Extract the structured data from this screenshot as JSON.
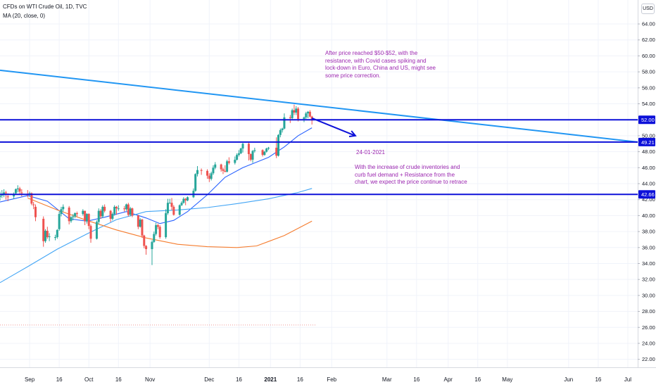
{
  "header": {
    "title": "CFDs on WTI Crude Oil, 1D, TVC",
    "ma_label": "MA (20, close, 0)",
    "currency": "USD"
  },
  "colors": {
    "candle_up": "#26a69a",
    "candle_down": "#ef5350",
    "ma20": "#2962ff",
    "ma50": "#42a5f5",
    "ma200": "#f57c2e",
    "level_line": "#0d11d9",
    "trend_line": "#2196f3",
    "annotation": "#9c27b0"
  },
  "annotations": {
    "note1": "After price reached $50-$52, with the resistance, with Covid cases spiking and lock-down in Euro, China and US, might see some price correction.",
    "note_date": "24-01-2021",
    "note2": "With the increase of crude inventories and curb fuel demand + Resistance from the chart, we expect the price continue to retrace"
  },
  "chart_data": {
    "type": "candlestick",
    "title": "CFDs on WTI Crude Oil, 1D, TVC",
    "y_axis": {
      "range": [
        21.0,
        67.0
      ],
      "ticks": [
        "22.00",
        "24.00",
        "26.00",
        "28.00",
        "30.00",
        "32.00",
        "34.00",
        "36.00",
        "38.00",
        "40.00",
        "42.00",
        "44.00",
        "46.00",
        "48.00",
        "50.00",
        "52.00",
        "54.00",
        "56.00",
        "58.00",
        "60.00",
        "62.00",
        "64.00"
      ]
    },
    "x_axis": {
      "range": [
        "2020-08-17",
        "2021-07-06"
      ],
      "ticks": [
        {
          "label": "Sep",
          "date": "2020-09-01"
        },
        {
          "label": "16",
          "date": "2020-09-16"
        },
        {
          "label": "Oct",
          "date": "2020-10-01"
        },
        {
          "label": "16",
          "date": "2020-10-16"
        },
        {
          "label": "Nov",
          "date": "2020-11-01"
        },
        {
          "label": "Dec",
          "date": "2020-12-01"
        },
        {
          "label": "16",
          "date": "2020-12-16"
        },
        {
          "label": "2021",
          "date": "2021-01-01"
        },
        {
          "label": "16",
          "date": "2021-01-16"
        },
        {
          "label": "Feb",
          "date": "2021-02-01"
        },
        {
          "label": "Mar",
          "date": "2021-03-01"
        },
        {
          "label": "16",
          "date": "2021-03-16"
        },
        {
          "label": "Apr",
          "date": "2021-04-01"
        },
        {
          "label": "16",
          "date": "2021-04-16"
        },
        {
          "label": "May",
          "date": "2021-05-01"
        },
        {
          "label": "Jun",
          "date": "2021-06-01"
        },
        {
          "label": "16",
          "date": "2021-06-16"
        },
        {
          "label": "Jul",
          "date": "2021-07-01"
        }
      ]
    },
    "horizontal_levels": [
      {
        "price": 52.0,
        "label": "52.00"
      },
      {
        "price": 49.21,
        "label": "49.21"
      },
      {
        "price": 42.66,
        "label": "42.66"
      }
    ],
    "trend_line": {
      "from": {
        "date": "2020-08-17",
        "price": 58.2
      },
      "to": {
        "date": "2021-07-06",
        "price": 49.21
      }
    },
    "projection_arrow": {
      "from": {
        "date": "2021-01-22",
        "price": 52.2
      },
      "to": {
        "date": "2021-02-13",
        "price": 50.0
      }
    },
    "dotted_level": {
      "price": 26.3,
      "to_date": "2021-01-24"
    },
    "candles": [
      [
        "2020-08-17",
        42.3,
        43.0,
        41.9,
        42.5
      ],
      [
        "2020-08-18",
        42.6,
        43.2,
        42.2,
        42.6
      ],
      [
        "2020-08-19",
        42.7,
        43.3,
        42.3,
        42.9
      ],
      [
        "2020-08-20",
        42.9,
        43.1,
        42.0,
        42.8
      ],
      [
        "2020-08-21",
        42.4,
        42.8,
        41.8,
        42.3
      ],
      [
        "2020-08-24",
        42.4,
        42.9,
        42.1,
        42.6
      ],
      [
        "2020-08-25",
        42.8,
        43.4,
        42.6,
        43.3
      ],
      [
        "2020-08-26",
        43.3,
        43.8,
        42.9,
        43.4
      ],
      [
        "2020-08-27",
        43.4,
        43.6,
        42.7,
        43.0
      ],
      [
        "2020-08-28",
        42.9,
        43.3,
        42.4,
        42.8
      ],
      [
        "2020-08-31",
        42.7,
        43.2,
        42.3,
        42.6
      ],
      [
        "2020-09-01",
        42.7,
        43.0,
        42.4,
        42.8
      ],
      [
        "2020-09-02",
        42.8,
        42.9,
        41.3,
        41.5
      ],
      [
        "2020-09-03",
        41.4,
        41.7,
        40.8,
        41.3
      ],
      [
        "2020-09-04",
        41.1,
        41.4,
        39.3,
        39.8
      ],
      [
        "2020-09-08",
        39.6,
        39.9,
        36.1,
        36.8
      ],
      [
        "2020-09-09",
        36.8,
        38.3,
        36.6,
        38.1
      ],
      [
        "2020-09-10",
        38.1,
        38.6,
        37.1,
        37.3
      ],
      [
        "2020-09-11",
        37.3,
        37.8,
        36.8,
        37.4
      ],
      [
        "2020-09-14",
        37.3,
        37.6,
        36.9,
        37.3
      ],
      [
        "2020-09-15",
        37.3,
        38.3,
        37.1,
        38.2
      ],
      [
        "2020-09-16",
        38.3,
        40.5,
        38.1,
        40.2
      ],
      [
        "2020-09-17",
        40.2,
        41.1,
        39.9,
        40.8
      ],
      [
        "2020-09-18",
        40.8,
        41.4,
        40.5,
        41.1
      ],
      [
        "2020-09-21",
        41.0,
        41.2,
        38.9,
        39.3
      ],
      [
        "2020-09-22",
        39.3,
        39.9,
        39.1,
        39.8
      ],
      [
        "2020-09-23",
        39.8,
        40.2,
        39.4,
        39.9
      ],
      [
        "2020-09-24",
        39.9,
        40.4,
        39.7,
        40.3
      ],
      [
        "2020-09-25",
        40.3,
        40.5,
        39.9,
        40.2
      ],
      [
        "2020-09-28",
        40.2,
        40.8,
        40.0,
        40.6
      ],
      [
        "2020-09-29",
        40.6,
        40.6,
        38.8,
        39.3
      ],
      [
        "2020-09-30",
        39.3,
        40.3,
        39.0,
        40.2
      ],
      [
        "2020-10-01",
        40.2,
        40.3,
        38.3,
        38.7
      ],
      [
        "2020-10-02",
        38.7,
        38.9,
        36.6,
        37.1
      ],
      [
        "2020-10-05",
        37.1,
        39.4,
        37.0,
        39.2
      ],
      [
        "2020-10-06",
        39.2,
        40.9,
        38.9,
        40.6
      ],
      [
        "2020-10-07",
        40.6,
        40.8,
        39.6,
        39.9
      ],
      [
        "2020-10-08",
        39.9,
        41.3,
        39.7,
        41.1
      ],
      [
        "2020-10-09",
        41.1,
        41.4,
        40.4,
        40.6
      ],
      [
        "2020-10-12",
        40.6,
        40.7,
        39.2,
        39.6
      ],
      [
        "2020-10-13",
        39.6,
        40.4,
        39.4,
        40.2
      ],
      [
        "2020-10-14",
        40.2,
        41.3,
        40.0,
        41.1
      ],
      [
        "2020-10-15",
        41.1,
        41.2,
        40.1,
        40.9
      ],
      [
        "2020-10-16",
        40.9,
        41.3,
        40.6,
        40.9
      ],
      [
        "2020-10-19",
        40.9,
        41.2,
        40.5,
        40.8
      ],
      [
        "2020-10-20",
        40.8,
        41.5,
        40.6,
        41.4
      ],
      [
        "2020-10-21",
        41.4,
        41.6,
        39.9,
        40.1
      ],
      [
        "2020-10-22",
        40.1,
        41.1,
        39.9,
        40.9
      ],
      [
        "2020-10-23",
        40.9,
        41.0,
        39.8,
        40.0
      ],
      [
        "2020-10-26",
        40.0,
        40.1,
        38.3,
        38.6
      ],
      [
        "2020-10-27",
        38.6,
        39.7,
        38.5,
        39.5
      ],
      [
        "2020-10-28",
        39.5,
        39.6,
        37.2,
        37.5
      ],
      [
        "2020-10-29",
        37.5,
        37.6,
        35.9,
        36.2
      ],
      [
        "2020-10-30",
        36.2,
        36.3,
        35.1,
        35.8
      ],
      [
        "2020-11-02",
        35.8,
        36.9,
        33.8,
        36.7
      ],
      [
        "2020-11-03",
        36.7,
        38.0,
        36.6,
        37.7
      ],
      [
        "2020-11-04",
        37.7,
        39.1,
        37.5,
        38.8
      ],
      [
        "2020-11-05",
        38.8,
        39.0,
        38.3,
        38.6
      ],
      [
        "2020-11-06",
        38.6,
        38.8,
        37.1,
        37.3
      ],
      [
        "2020-11-09",
        37.3,
        40.8,
        37.1,
        40.3
      ],
      [
        "2020-11-10",
        40.3,
        42.1,
        40.1,
        41.6
      ],
      [
        "2020-11-11",
        41.6,
        42.1,
        41.5,
        41.6
      ],
      [
        "2020-11-12",
        41.6,
        42.2,
        40.7,
        41.1
      ],
      [
        "2020-11-13",
        41.1,
        41.3,
        40.0,
        40.1
      ],
      [
        "2020-11-16",
        40.1,
        41.4,
        40.0,
        41.3
      ],
      [
        "2020-11-17",
        41.3,
        41.8,
        41.2,
        41.6
      ],
      [
        "2020-11-18",
        41.6,
        42.3,
        41.5,
        42.1
      ],
      [
        "2020-11-19",
        42.1,
        42.2,
        41.3,
        41.9
      ],
      [
        "2020-11-20",
        41.9,
        42.4,
        41.8,
        42.3
      ],
      [
        "2020-11-23",
        42.3,
        43.4,
        42.2,
        43.1
      ],
      [
        "2020-11-24",
        43.1,
        45.3,
        43.0,
        45.2
      ],
      [
        "2020-11-25",
        45.2,
        46.2,
        44.9,
        45.7
      ],
      [
        "2020-11-27",
        45.7,
        45.9,
        45.1,
        45.6
      ],
      [
        "2020-11-30",
        45.6,
        45.8,
        44.6,
        45.0
      ],
      [
        "2020-12-01",
        45.0,
        45.3,
        44.2,
        44.6
      ],
      [
        "2020-12-02",
        44.6,
        45.5,
        44.4,
        45.3
      ],
      [
        "2020-12-03",
        45.3,
        46.3,
        45.1,
        46.0
      ],
      [
        "2020-12-04",
        46.0,
        46.7,
        45.8,
        46.4
      ],
      [
        "2020-12-07",
        46.4,
        46.5,
        45.5,
        45.8
      ],
      [
        "2020-12-08",
        45.8,
        46.0,
        45.2,
        45.6
      ],
      [
        "2020-12-09",
        45.6,
        46.3,
        45.4,
        45.5
      ],
      [
        "2020-12-10",
        45.5,
        47.0,
        45.4,
        46.8
      ],
      [
        "2020-12-11",
        46.8,
        47.3,
        46.4,
        46.6
      ],
      [
        "2020-12-14",
        46.6,
        47.4,
        46.4,
        47.0
      ],
      [
        "2020-12-15",
        47.0,
        47.8,
        46.9,
        47.6
      ],
      [
        "2020-12-16",
        47.6,
        48.2,
        47.4,
        47.8
      ],
      [
        "2020-12-17",
        47.8,
        48.5,
        47.7,
        48.4
      ],
      [
        "2020-12-18",
        48.4,
        49.1,
        47.9,
        49.0
      ],
      [
        "2020-12-21",
        49.0,
        49.2,
        46.9,
        47.7
      ],
      [
        "2020-12-22",
        47.7,
        47.8,
        46.8,
        47.0
      ],
      [
        "2020-12-23",
        47.0,
        48.2,
        46.6,
        48.1
      ],
      [
        "2020-12-24",
        48.1,
        48.5,
        47.9,
        48.2
      ],
      [
        "2020-12-28",
        48.2,
        48.3,
        47.4,
        47.6
      ],
      [
        "2020-12-29",
        47.6,
        48.1,
        47.5,
        48.0
      ],
      [
        "2020-12-30",
        48.0,
        48.5,
        47.9,
        48.4
      ],
      [
        "2020-12-31",
        48.4,
        48.6,
        48.2,
        48.5
      ],
      [
        "2021-01-04",
        48.5,
        49.8,
        47.2,
        47.5
      ],
      [
        "2021-01-05",
        47.5,
        50.2,
        47.4,
        50.1
      ],
      [
        "2021-01-06",
        50.1,
        50.9,
        49.8,
        50.7
      ],
      [
        "2021-01-07",
        50.7,
        51.0,
        50.4,
        50.9
      ],
      [
        "2021-01-08",
        50.9,
        52.8,
        50.8,
        52.3
      ],
      [
        "2021-01-11",
        52.3,
        52.6,
        51.6,
        52.2
      ],
      [
        "2021-01-12",
        52.2,
        53.4,
        52.0,
        53.2
      ],
      [
        "2021-01-13",
        53.2,
        53.9,
        52.6,
        52.9
      ],
      [
        "2021-01-14",
        52.9,
        53.7,
        52.6,
        53.4
      ],
      [
        "2021-01-15",
        53.4,
        53.6,
        51.8,
        52.1
      ],
      [
        "2021-01-18",
        52.1,
        52.4,
        51.7,
        52.3
      ],
      [
        "2021-01-19",
        52.3,
        53.0,
        52.1,
        52.8
      ],
      [
        "2021-01-20",
        52.8,
        53.1,
        52.2,
        53.0
      ],
      [
        "2021-01-21",
        53.0,
        53.2,
        52.3,
        52.4
      ],
      [
        "2021-01-22",
        52.4,
        52.5,
        51.4,
        51.9
      ]
    ],
    "moving_averages": [
      {
        "label": "MA 20",
        "color_key": "ma20",
        "points": [
          [
            "2020-08-17",
            41.7
          ],
          [
            "2020-08-31",
            42.5
          ],
          [
            "2020-09-10",
            41.8
          ],
          [
            "2020-09-21",
            39.6
          ],
          [
            "2020-09-30",
            39.3
          ],
          [
            "2020-10-09",
            39.8
          ],
          [
            "2020-10-20",
            40.5
          ],
          [
            "2020-10-30",
            39.7
          ],
          [
            "2020-11-06",
            39.0
          ],
          [
            "2020-11-13",
            39.4
          ],
          [
            "2020-11-20",
            40.5
          ],
          [
            "2020-11-30",
            42.6
          ],
          [
            "2020-12-09",
            44.8
          ],
          [
            "2020-12-18",
            46.0
          ],
          [
            "2020-12-31",
            47.3
          ],
          [
            "2021-01-08",
            48.6
          ],
          [
            "2021-01-15",
            50.0
          ],
          [
            "2021-01-22",
            51.0
          ]
        ]
      },
      {
        "label": "MA 50",
        "color_key": "ma50",
        "points": [
          [
            "2020-08-17",
            31.6
          ],
          [
            "2020-08-31",
            33.6
          ],
          [
            "2020-09-15",
            35.8
          ],
          [
            "2020-09-30",
            37.7
          ],
          [
            "2020-10-15",
            39.5
          ],
          [
            "2020-10-30",
            40.5
          ],
          [
            "2020-11-15",
            40.7
          ],
          [
            "2020-11-30",
            41.0
          ],
          [
            "2020-12-15",
            41.5
          ],
          [
            "2020-12-31",
            42.1
          ],
          [
            "2021-01-15",
            42.9
          ],
          [
            "2021-01-22",
            43.4
          ]
        ]
      },
      {
        "label": "MA 200",
        "color_key": "ma200",
        "points": [
          [
            "2020-08-31",
            42.2
          ],
          [
            "2020-09-15",
            40.7
          ],
          [
            "2020-09-30",
            39.4
          ],
          [
            "2020-10-15",
            38.2
          ],
          [
            "2020-10-30",
            37.2
          ],
          [
            "2020-11-15",
            36.4
          ],
          [
            "2020-11-30",
            36.1
          ],
          [
            "2020-12-15",
            36.0
          ],
          [
            "2020-12-25",
            36.2
          ],
          [
            "2021-01-08",
            37.5
          ],
          [
            "2021-01-22",
            39.3
          ]
        ]
      }
    ]
  }
}
